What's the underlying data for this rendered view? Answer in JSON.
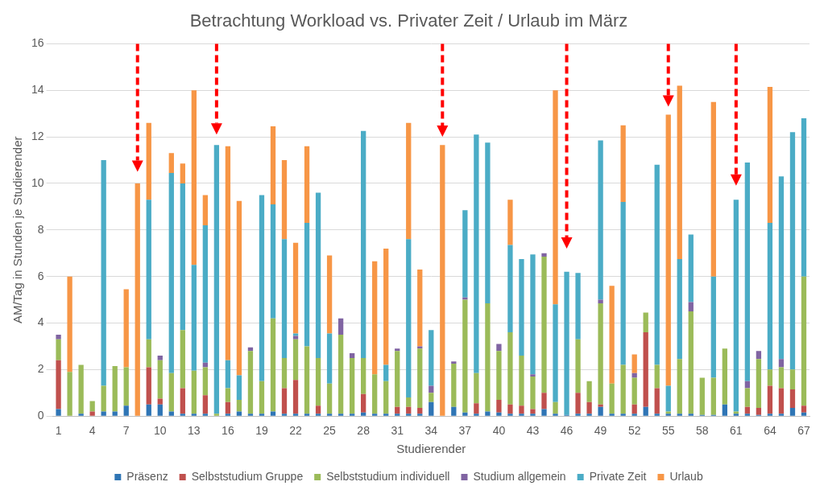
{
  "chart_data": {
    "type": "bar",
    "title": "Betrachtung Workload vs. Privater Zeit / Urlaub im März",
    "x_label": "Studierender",
    "y_label": "AM/Tag in Stunden je Studierender",
    "categories": [
      "1",
      null,
      null,
      "4",
      null,
      null,
      "7",
      null,
      null,
      "10",
      null,
      null,
      "13",
      null,
      null,
      "16",
      null,
      null,
      "19",
      null,
      null,
      "22",
      null,
      null,
      "25",
      null,
      null,
      "28",
      null,
      null,
      "31",
      null,
      null,
      "34",
      null,
      null,
      "37",
      null,
      null,
      "40",
      null,
      null,
      "43",
      null,
      null,
      "46",
      null,
      null,
      "49",
      null,
      null,
      "52",
      null,
      null,
      "55",
      null,
      null,
      "58",
      null,
      null,
      "61",
      null,
      null,
      "64",
      null,
      null,
      "67"
    ],
    "series": [
      {
        "name": "Präsenz",
        "color": "#2f75b5",
        "values": [
          0.3,
          0,
          0.1,
          0,
          0.2,
          0.2,
          0.45,
          0,
          0.5,
          0.5,
          0.2,
          0.1,
          0.1,
          0.1,
          0,
          0.1,
          0.2,
          0.1,
          0.1,
          0.2,
          0.1,
          0.1,
          0.1,
          0.1,
          0.1,
          0.1,
          0.1,
          0.15,
          0.1,
          0.1,
          0.1,
          0.1,
          0.1,
          0.6,
          0,
          0.4,
          0.15,
          0.1,
          0.2,
          0.15,
          0.1,
          0.1,
          0.1,
          0.3,
          0.1,
          0.05,
          0.1,
          0.1,
          0.4,
          0.1,
          0.1,
          0.1,
          0.4,
          0.1,
          0.1,
          0.1,
          0.1,
          0.05,
          0.05,
          0.5,
          0.1,
          0.1,
          0.05,
          0.1,
          0.1,
          0.35,
          0.15
        ]
      },
      {
        "name": "Selbststudium Gruppe",
        "color": "#c0504d",
        "values": [
          2.1,
          0,
          0,
          0.2,
          0,
          0,
          0,
          0,
          1.6,
          0.25,
          0,
          1.1,
          0,
          0.8,
          0,
          0.5,
          0,
          0,
          0,
          0,
          1.1,
          1.45,
          0,
          0.35,
          0,
          0,
          0,
          0.8,
          0,
          0,
          0.3,
          0.3,
          0.25,
          0,
          0,
          0,
          0,
          0.45,
          0,
          0.55,
          0.4,
          0.35,
          0.2,
          0.7,
          0,
          0,
          0.9,
          0.5,
          0.1,
          0,
          0,
          0.4,
          3.2,
          1.1,
          0,
          0,
          0,
          0,
          0,
          0,
          0,
          0.3,
          0.3,
          1.2,
          1.1,
          0.8,
          0.3
        ]
      },
      {
        "name": "Selbststudium individuell",
        "color": "#9bbb59",
        "values": [
          0.9,
          1.9,
          2.1,
          0.45,
          1.1,
          1.95,
          1.65,
          0,
          1.2,
          1.65,
          1.65,
          2.5,
          1.85,
          1.2,
          0.1,
          0.6,
          0.5,
          2.7,
          1.4,
          4.0,
          1.3,
          1.75,
          2.9,
          2.05,
          1.3,
          3.4,
          2.4,
          1.55,
          1.7,
          1.4,
          2.4,
          0.4,
          2.55,
          0.4,
          0,
          1.85,
          4.85,
          1.3,
          4.65,
          2.1,
          3.1,
          2.15,
          1.4,
          5.85,
          0.5,
          0,
          2.3,
          0.9,
          4.35,
          1.3,
          2.1,
          1.15,
          0.85,
          1.0,
          0.1,
          2.35,
          4.4,
          1.6,
          1.6,
          2.4,
          0.1,
          0.8,
          2.1,
          0.7,
          0.9,
          0.85,
          5.55
        ]
      },
      {
        "name": "Studium allgemein",
        "color": "#8064a2",
        "values": [
          0.2,
          0,
          0,
          0,
          0,
          0,
          0,
          0,
          0,
          0.2,
          0,
          0,
          0,
          0.2,
          0,
          0,
          0,
          0.15,
          0,
          0,
          0,
          0.15,
          0,
          0,
          0,
          0.7,
          0.2,
          0,
          0,
          0,
          0.1,
          0,
          0.1,
          0.3,
          0,
          0.1,
          0.1,
          0,
          0,
          0.3,
          0,
          0,
          0.1,
          0.15,
          0,
          0,
          0,
          0,
          0.15,
          0,
          0,
          0.2,
          0,
          0,
          0,
          0,
          0.4,
          0,
          0,
          0,
          0,
          0.3,
          0.35,
          0,
          0.35,
          0,
          0
        ]
      },
      {
        "name": "Private Zeit",
        "color": "#4bacc6",
        "values": [
          0,
          0,
          0,
          0,
          9.7,
          0,
          0,
          0,
          6.0,
          0,
          8.6,
          6.3,
          4.55,
          5.9,
          11.55,
          1.2,
          1.05,
          0,
          8.0,
          4.9,
          5.1,
          0.1,
          5.3,
          7.1,
          2.15,
          0,
          0,
          9.75,
          0,
          0.7,
          0,
          6.8,
          0,
          2.4,
          0,
          0,
          3.75,
          10.25,
          6.9,
          0,
          3.75,
          4.15,
          5.15,
          0,
          4.2,
          6.15,
          2.85,
          0,
          6.85,
          0,
          7.0,
          0,
          0,
          8.6,
          1.1,
          4.3,
          2.9,
          0,
          4.35,
          0,
          9.1,
          9.4,
          0,
          6.3,
          7.85,
          10.2,
          6.8
        ]
      },
      {
        "name": "Urlaub",
        "color": "#f79646",
        "values": [
          0,
          4.1,
          0,
          0,
          0,
          0,
          3.35,
          10.0,
          3.3,
          0,
          0.85,
          0.85,
          7.5,
          1.3,
          0,
          9.2,
          7.5,
          0,
          0,
          3.35,
          3.4,
          3.9,
          3.3,
          0,
          3.35,
          0,
          0,
          0,
          4.85,
          5.0,
          0,
          5.0,
          3.3,
          0,
          11.65,
          0,
          0,
          0,
          0,
          0,
          1.95,
          0,
          0,
          0,
          9.2,
          0,
          0,
          0,
          0,
          4.2,
          3.3,
          0.8,
          0,
          0,
          11.65,
          7.45,
          0,
          0,
          7.5,
          0,
          0,
          0,
          0,
          5.85,
          0,
          0,
          0
        ]
      }
    ],
    "ylim": [
      0,
      16
    ],
    "yticks": [
      0,
      2,
      4,
      6,
      8,
      10,
      12,
      14,
      16
    ],
    "grid": true,
    "stacked": true,
    "legend": "bottom",
    "annotations": [
      {
        "type": "arrow",
        "color": "#ff0000",
        "line_style": "dashed",
        "x": 8,
        "y_from": 16,
        "y_to": 10.5
      },
      {
        "type": "arrow",
        "color": "#ff0000",
        "line_style": "dashed",
        "x": 15,
        "y_from": 16,
        "y_to": 12.1
      },
      {
        "type": "arrow",
        "color": "#ff0000",
        "line_style": "dashed",
        "x": 35,
        "y_from": 16,
        "y_to": 12.0
      },
      {
        "type": "arrow",
        "color": "#ff0000",
        "line_style": "dashed",
        "x": 46,
        "y_from": 16,
        "y_to": 7.2
      },
      {
        "type": "arrow",
        "color": "#ff0000",
        "line_style": "dashed",
        "x": 55,
        "y_from": 16,
        "y_to": 13.3
      },
      {
        "type": "arrow",
        "color": "#ff0000",
        "line_style": "dashed",
        "x": 61,
        "y_from": 16,
        "y_to": 9.9
      }
    ]
  }
}
